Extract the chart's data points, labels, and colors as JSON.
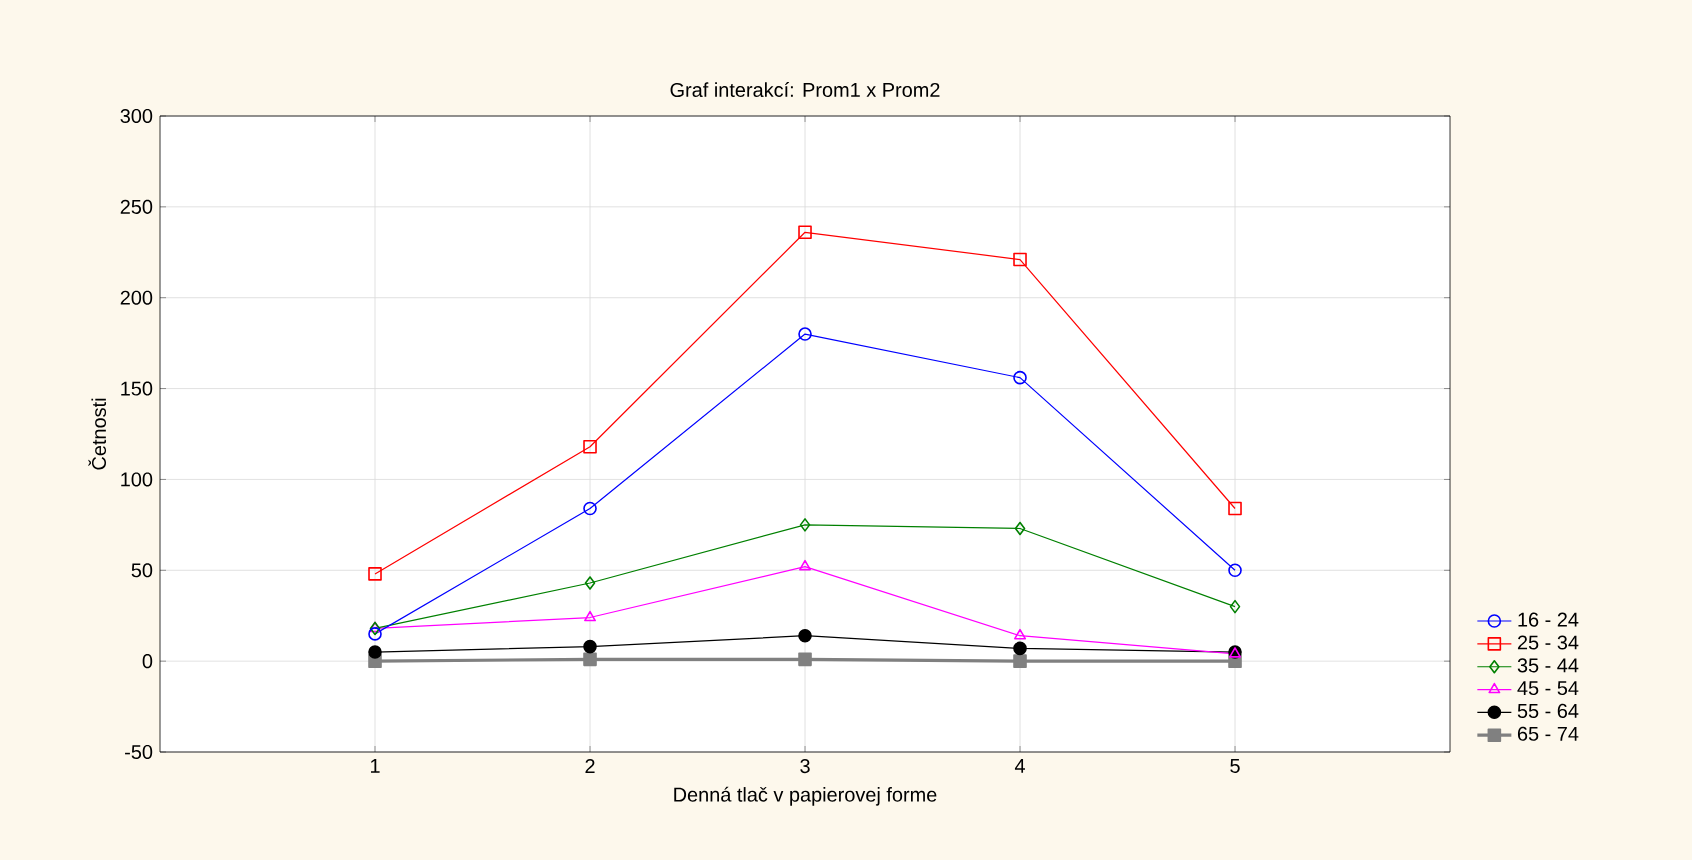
{
  "chart_data": {
    "type": "line",
    "title": "Graf interakcí: Prom1 x Prom2",
    "xlabel": "Denná tlač v papierovej forme",
    "ylabel": "Četnosti",
    "x": [
      1,
      2,
      3,
      4,
      5
    ],
    "xlim": [
      0,
      6
    ],
    "xticks": [
      1,
      2,
      3,
      4,
      5
    ],
    "ylim": [
      -50,
      300
    ],
    "yticks": [
      -50,
      0,
      50,
      100,
      150,
      200,
      250,
      300
    ],
    "grid": true,
    "legend": "bottom right",
    "line_style": "solid",
    "series": [
      {
        "name": "16 - 24",
        "color": "#0000ff",
        "marker": "circle",
        "values": [
          15,
          84,
          180,
          156,
          50
        ]
      },
      {
        "name": "25 - 34",
        "color": "#ff0000",
        "marker": "square",
        "values": [
          48,
          118,
          236,
          221,
          84
        ]
      },
      {
        "name": "35 - 44",
        "color": "#008000",
        "marker": "diamond",
        "values": [
          18,
          43,
          75,
          73,
          30
        ]
      },
      {
        "name": "45 - 54",
        "color": "#ff00ff",
        "marker": "triangle",
        "values": [
          18,
          24,
          52,
          14,
          4
        ]
      },
      {
        "name": "55 - 64",
        "color": "#000000",
        "marker": "circle*",
        "values": [
          5,
          8,
          14,
          7,
          5
        ]
      },
      {
        "name": "65 - 74",
        "color": "#808080",
        "marker": "square*",
        "values": [
          0,
          1,
          1,
          0,
          0
        ]
      }
    ]
  }
}
